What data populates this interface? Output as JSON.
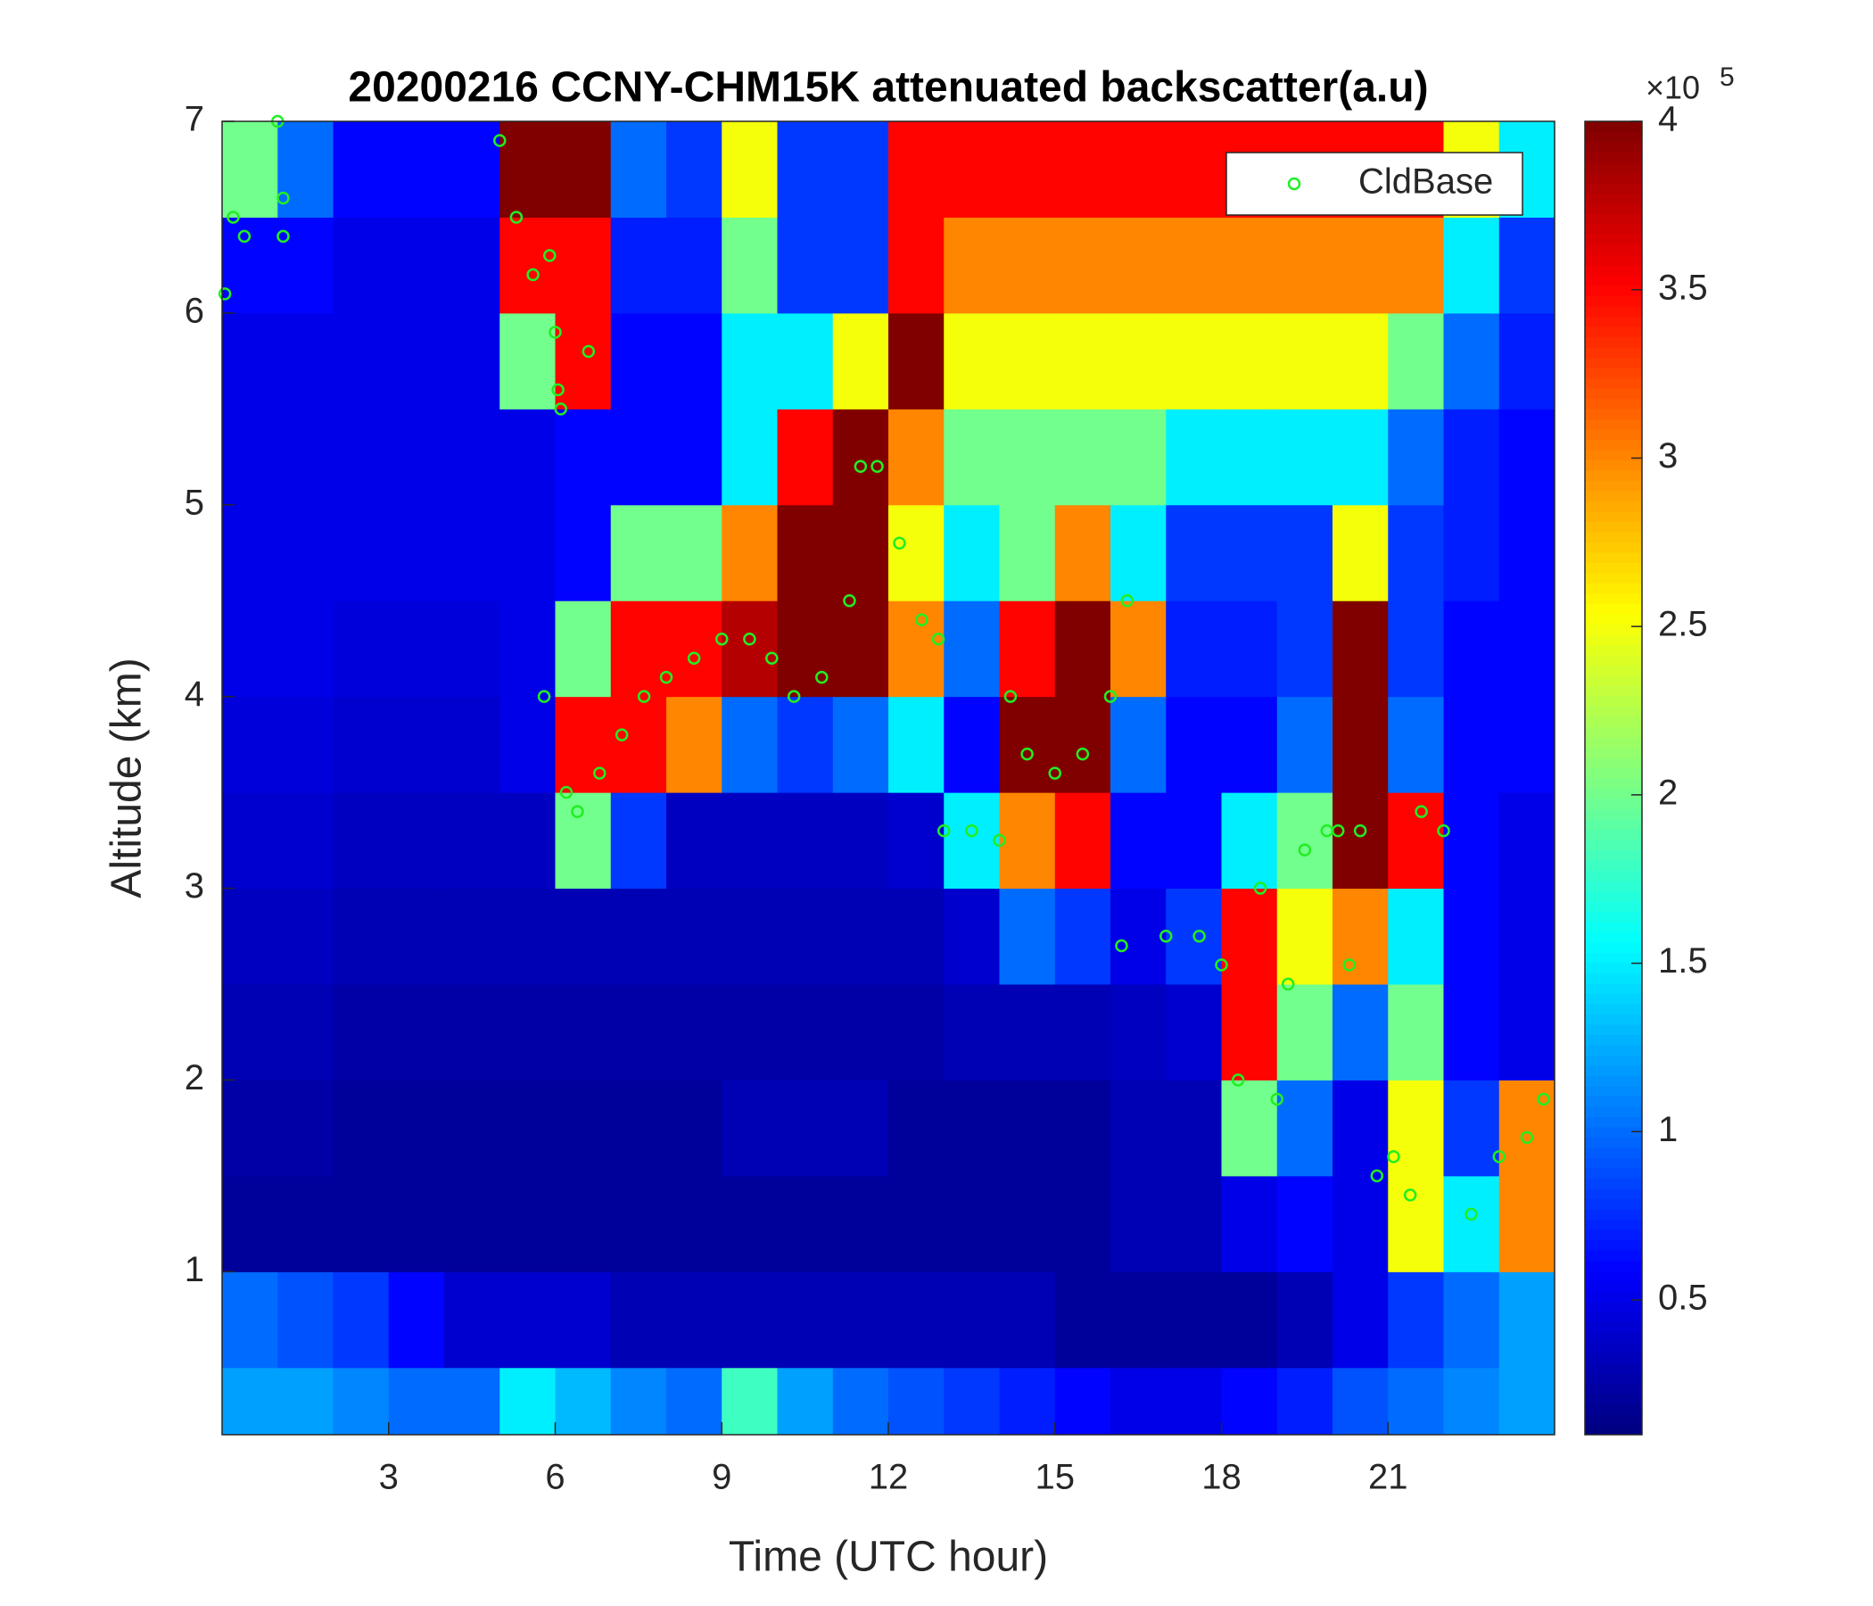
{
  "chart_data": {
    "type": "heatmap",
    "title": "20200216 CCNY-CHM15K attenuated backscatter(a.u)",
    "x_label": "Time (UTC hour)",
    "y_label": "Altitude (km)",
    "xlim": [
      0,
      24
    ],
    "ylim": [
      0.15,
      7
    ],
    "xticks": [
      3,
      6,
      9,
      12,
      15,
      18,
      21
    ],
    "yticks": [
      1,
      2,
      3,
      4,
      5,
      6,
      7
    ],
    "x_edges": [
      0,
      1,
      2,
      3,
      4,
      5,
      6,
      7,
      8,
      9,
      10,
      11,
      12,
      13,
      14,
      15,
      16,
      17,
      18,
      19,
      20,
      21,
      22,
      23,
      24
    ],
    "y_edges": [
      0.15,
      0.5,
      1,
      1.5,
      2,
      2.5,
      3,
      3.5,
      4,
      4.5,
      5,
      5.5,
      6,
      6.5,
      7
    ],
    "colormap": "jet",
    "colorbar": {
      "clim": [
        0.1,
        4
      ],
      "ticks": [
        0.5,
        1,
        1.5,
        2,
        2.5,
        3,
        3.5,
        4
      ],
      "multiplier": "×10",
      "exponent": "5"
    },
    "z": [
      [
        1.2,
        1.2,
        1.1,
        1.0,
        1.0,
        1.5,
        1.3,
        1.1,
        1.0,
        1.8,
        1.2,
        1.0,
        0.9,
        0.8,
        0.7,
        0.6,
        0.5,
        0.5,
        0.6,
        0.7,
        0.9,
        1.0,
        1.1,
        1.2
      ],
      [
        1.0,
        0.9,
        0.8,
        0.6,
        0.4,
        0.4,
        0.4,
        0.3,
        0.3,
        0.3,
        0.3,
        0.3,
        0.3,
        0.3,
        0.3,
        0.2,
        0.2,
        0.2,
        0.2,
        0.3,
        0.5,
        0.8,
        1.0,
        1.2
      ],
      [
        0.2,
        0.2,
        0.2,
        0.2,
        0.2,
        0.2,
        0.2,
        0.2,
        0.2,
        0.2,
        0.2,
        0.2,
        0.2,
        0.2,
        0.2,
        0.2,
        0.3,
        0.3,
        0.5,
        0.6,
        0.5,
        2.5,
        1.5,
        3.0
      ],
      [
        0.25,
        0.25,
        0.2,
        0.2,
        0.2,
        0.2,
        0.2,
        0.2,
        0.2,
        0.3,
        0.3,
        0.3,
        0.2,
        0.2,
        0.2,
        0.2,
        0.3,
        0.3,
        2.0,
        1.0,
        0.5,
        2.5,
        0.8,
        3.0
      ],
      [
        0.3,
        0.3,
        0.25,
        0.25,
        0.25,
        0.25,
        0.25,
        0.25,
        0.25,
        0.25,
        0.25,
        0.25,
        0.25,
        0.3,
        0.3,
        0.3,
        0.35,
        0.4,
        3.5,
        2.0,
        1.0,
        2.0,
        0.6,
        0.5
      ],
      [
        0.35,
        0.35,
        0.3,
        0.3,
        0.3,
        0.3,
        0.3,
        0.3,
        0.3,
        0.3,
        0.3,
        0.3,
        0.3,
        0.4,
        1.0,
        0.8,
        0.5,
        0.8,
        3.5,
        2.5,
        3.0,
        1.5,
        0.6,
        0.5
      ],
      [
        0.4,
        0.4,
        0.35,
        0.35,
        0.35,
        0.35,
        2.0,
        0.8,
        0.35,
        0.35,
        0.35,
        0.35,
        0.4,
        1.5,
        3.0,
        3.5,
        0.6,
        0.6,
        1.5,
        2.0,
        4,
        3.5,
        0.6,
        0.5
      ],
      [
        0.45,
        0.45,
        0.4,
        0.4,
        0.4,
        0.5,
        3.5,
        3.5,
        3.0,
        1.0,
        0.8,
        1.0,
        1.5,
        0.6,
        4,
        4,
        1.0,
        0.6,
        0.6,
        1.0,
        4,
        1.0,
        0.6,
        0.6
      ],
      [
        0.5,
        0.5,
        0.45,
        0.45,
        0.45,
        0.5,
        2.0,
        3.5,
        3.5,
        3.8,
        4,
        4,
        3.0,
        1.0,
        3.5,
        4,
        3.0,
        0.7,
        0.7,
        0.8,
        4,
        0.8,
        0.6,
        0.6
      ],
      [
        0.5,
        0.5,
        0.5,
        0.5,
        0.5,
        0.5,
        0.6,
        2.0,
        2.0,
        3.0,
        4,
        4,
        2.5,
        1.5,
        2.0,
        3.0,
        1.5,
        0.8,
        0.8,
        0.8,
        2.5,
        0.8,
        0.7,
        0.6
      ],
      [
        0.5,
        0.5,
        0.5,
        0.5,
        0.5,
        0.5,
        0.6,
        0.6,
        0.6,
        1.5,
        3.5,
        4,
        3.0,
        2.0,
        2.0,
        2.0,
        2.0,
        1.5,
        1.5,
        1.5,
        1.5,
        1.0,
        0.7,
        0.6
      ],
      [
        0.5,
        0.5,
        0.5,
        0.5,
        0.5,
        2.0,
        3.5,
        0.6,
        0.6,
        1.5,
        1.5,
        2.5,
        4,
        2.5,
        2.5,
        2.5,
        2.5,
        2.5,
        2.5,
        2.5,
        2.5,
        2.0,
        1.0,
        0.7
      ],
      [
        0.6,
        0.6,
        0.5,
        0.5,
        0.5,
        3.5,
        3.5,
        0.7,
        0.7,
        2.0,
        0.8,
        0.8,
        3.5,
        3.0,
        3.0,
        3.0,
        3.0,
        3.0,
        3.0,
        3.0,
        3.0,
        3.0,
        1.5,
        0.8
      ],
      [
        2.0,
        1.0,
        0.6,
        0.6,
        0.6,
        4,
        4,
        1.0,
        0.8,
        2.5,
        0.8,
        0.8,
        3.5,
        3.5,
        3.5,
        3.5,
        3.5,
        3.5,
        3.5,
        3.5,
        3.5,
        3.5,
        2.5,
        1.5
      ]
    ],
    "series": [
      {
        "type": "scatter",
        "name": "CldBase",
        "color": "#22ee22",
        "x": [
          0.05,
          0.2,
          0.4,
          1.0,
          1.1,
          1.1,
          5.0,
          5.3,
          5.6,
          5.9,
          6.0,
          6.05,
          6.1,
          6.6,
          5.8,
          6.2,
          6.4,
          6.8,
          7.2,
          7.6,
          8.0,
          8.5,
          9.0,
          9.5,
          9.9,
          10.3,
          10.8,
          11.3,
          11.5,
          11.8,
          12.2,
          12.6,
          12.9,
          13.0,
          13.5,
          14.0,
          14.2,
          14.5,
          15.0,
          15.5,
          16.0,
          16.3,
          16.2,
          17.0,
          17.6,
          18.0,
          18.3,
          18.7,
          19.0,
          19.2,
          19.5,
          19.9,
          20.1,
          20.3,
          20.5,
          20.8,
          21.1,
          21.4,
          21.6,
          22.0,
          22.5,
          23.0,
          23.5,
          23.8
        ],
        "y": [
          6.1,
          6.5,
          6.4,
          7.0,
          6.6,
          6.4,
          6.9,
          6.5,
          6.2,
          6.3,
          5.9,
          5.6,
          5.5,
          5.8,
          4.0,
          3.5,
          3.4,
          3.6,
          3.8,
          4.0,
          4.1,
          4.2,
          4.3,
          4.3,
          4.2,
          4.0,
          4.1,
          4.5,
          5.2,
          5.2,
          4.8,
          4.4,
          4.3,
          3.3,
          3.3,
          3.25,
          4.0,
          3.7,
          3.6,
          3.7,
          4.0,
          4.5,
          2.7,
          2.75,
          2.75,
          2.6,
          2.0,
          3.0,
          1.9,
          2.5,
          3.2,
          3.3,
          3.3,
          2.6,
          3.3,
          1.5,
          1.6,
          1.4,
          3.4,
          3.3,
          1.3,
          1.6,
          1.7,
          1.9
        ]
      }
    ],
    "legend": "upper right"
  }
}
